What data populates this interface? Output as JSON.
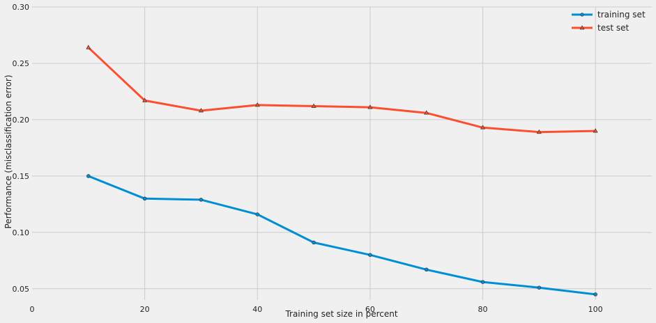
{
  "chart_data": {
    "type": "line",
    "title": "",
    "xlabel": "Training set size in percent",
    "ylabel": "Performance (misclassification error)",
    "xlim": [
      0,
      110
    ],
    "ylim": [
      0.04,
      0.3
    ],
    "x_ticks": [
      0,
      20,
      40,
      60,
      80,
      100
    ],
    "y_ticks": [
      0.05,
      0.1,
      0.15,
      0.2,
      0.25,
      0.3
    ],
    "y_tick_labels": [
      "0.05",
      "0.10",
      "0.15",
      "0.20",
      "0.25",
      "0.30"
    ],
    "grid": true,
    "legend": "top-right",
    "x": [
      10,
      20,
      30,
      40,
      50,
      60,
      70,
      80,
      90,
      100
    ],
    "series": [
      {
        "name": "training set",
        "color": "#008fd5",
        "marker": "circle",
        "values": [
          0.15,
          0.13,
          0.129,
          0.116,
          0.091,
          0.08,
          0.067,
          0.056,
          0.051,
          0.045
        ]
      },
      {
        "name": "test set",
        "color": "#fc4f30",
        "marker": "triangle",
        "values": [
          0.264,
          0.217,
          0.208,
          0.213,
          0.212,
          0.211,
          0.206,
          0.193,
          0.189,
          0.19
        ]
      }
    ]
  }
}
